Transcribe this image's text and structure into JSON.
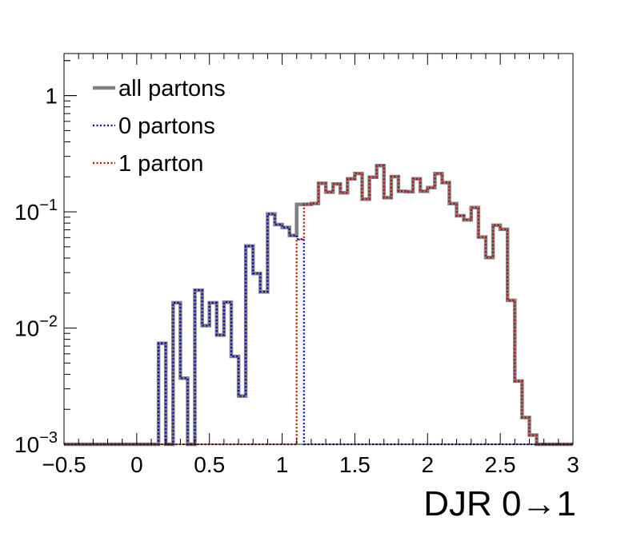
{
  "chart_data": {
    "type": "line",
    "style": "step-histogram",
    "xlabel": "DJR 0→1",
    "ylabel": "",
    "xlim": [
      -0.5,
      3
    ],
    "ylim": [
      0.001,
      2.3
    ],
    "yscale": "log",
    "grid": false,
    "legend_position": "top-left",
    "x_ticks": [
      {
        "value": -0.5,
        "label": "−0.5"
      },
      {
        "value": 0,
        "label": "0"
      },
      {
        "value": 0.5,
        "label": "0.5"
      },
      {
        "value": 1,
        "label": "1"
      },
      {
        "value": 1.5,
        "label": "1.5"
      },
      {
        "value": 2,
        "label": "2"
      },
      {
        "value": 2.5,
        "label": "2.5"
      },
      {
        "value": 3,
        "label": "3"
      }
    ],
    "y_ticks": [
      {
        "value": 1,
        "base": "1",
        "exp": ""
      },
      {
        "value": 0.1,
        "base": "10",
        "exp": "−1"
      },
      {
        "value": 0.01,
        "base": "10",
        "exp": "−2"
      },
      {
        "value": 0.001,
        "base": "10",
        "exp": "−3"
      }
    ],
    "bin_edges": [
      -0.5,
      -0.45,
      -0.4,
      -0.35,
      -0.3,
      -0.25,
      -0.2,
      -0.15,
      -0.1,
      -0.05,
      0,
      0.05,
      0.1,
      0.15,
      0.2,
      0.25,
      0.3,
      0.35,
      0.4,
      0.45,
      0.5,
      0.55,
      0.6,
      0.65,
      0.7,
      0.75,
      0.8,
      0.85,
      0.9,
      0.95,
      1,
      1.05,
      1.1,
      1.15,
      1.2,
      1.25,
      1.3,
      1.35,
      1.4,
      1.45,
      1.5,
      1.55,
      1.6,
      1.65,
      1.7,
      1.75,
      1.8,
      1.85,
      1.9,
      1.95,
      2,
      2.05,
      2.1,
      2.15,
      2.2,
      2.25,
      2.3,
      2.35,
      2.4,
      2.45,
      2.5,
      2.55,
      2.6,
      2.65,
      2.7,
      2.75,
      2.8,
      2.85,
      2.9,
      2.95,
      3
    ],
    "series": [
      {
        "name": "all partons",
        "color": "#808080",
        "line": "solid",
        "values": [
          0.001,
          0.001,
          0.001,
          0.001,
          0.001,
          0.001,
          0.001,
          0.001,
          0.001,
          0.001,
          0.001,
          0.001,
          0.001,
          0.0074,
          0.001,
          0.0165,
          0.0037,
          0.001,
          0.0212,
          0.0105,
          0.0165,
          0.0087,
          0.0167,
          0.0057,
          0.0026,
          0.0508,
          0.0295,
          0.0205,
          0.096,
          0.0777,
          0.0734,
          0.0627,
          0.116,
          0.1162,
          0.118,
          0.176,
          0.1477,
          0.1737,
          0.1456,
          0.1922,
          0.2136,
          0.1286,
          0.1988,
          0.25,
          0.1323,
          0.2008,
          0.1502,
          0.1489,
          0.1922,
          0.1502,
          0.1616,
          0.2129,
          0.1785,
          0.1177,
          0.0925,
          0.0853,
          0.1088,
          0.0607,
          0.0405,
          0.0766,
          0.0708,
          0.0173,
          0.0035,
          0.0017,
          0.0012,
          0.001,
          0.001,
          0.001,
          0.001,
          0.001
        ]
      },
      {
        "name": "0 partons",
        "color": "#0000cc",
        "line": "dotted",
        "values": [
          0.001,
          0.001,
          0.001,
          0.001,
          0.001,
          0.001,
          0.001,
          0.001,
          0.001,
          0.001,
          0.001,
          0.001,
          0.001,
          0.0074,
          0.001,
          0.0165,
          0.0037,
          0.001,
          0.0212,
          0.0105,
          0.0165,
          0.0087,
          0.0167,
          0.0057,
          0.0026,
          0.0508,
          0.0295,
          0.0205,
          0.096,
          0.0777,
          0.0734,
          0.0627,
          0.0583,
          0.001,
          0.001,
          0.001,
          0.001,
          0.001,
          0.001,
          0.001,
          0.001,
          0.001,
          0.001,
          0.001,
          0.001,
          0.001,
          0.001,
          0.001,
          0.001,
          0.001,
          0.001,
          0.001,
          0.001,
          0.001,
          0.001,
          0.001,
          0.001,
          0.001,
          0.001,
          0.001,
          0.001,
          0.001,
          0.001,
          0.001,
          0.001,
          0.001,
          0.001,
          0.001,
          0.001,
          0.001
        ]
      },
      {
        "name": "1 parton",
        "color": "#cc0000",
        "line": "dotted",
        "values": [
          0.001,
          0.001,
          0.001,
          0.001,
          0.001,
          0.001,
          0.001,
          0.001,
          0.001,
          0.001,
          0.001,
          0.001,
          0.001,
          0.001,
          0.001,
          0.001,
          0.001,
          0.001,
          0.001,
          0.001,
          0.001,
          0.001,
          0.001,
          0.001,
          0.001,
          0.001,
          0.001,
          0.001,
          0.001,
          0.001,
          0.001,
          0.001,
          0.0577,
          0.1162,
          0.118,
          0.176,
          0.1477,
          0.1737,
          0.1456,
          0.1922,
          0.2136,
          0.1286,
          0.1988,
          0.25,
          0.1323,
          0.2008,
          0.1502,
          0.1489,
          0.1922,
          0.1502,
          0.1616,
          0.2129,
          0.1785,
          0.1177,
          0.0925,
          0.0853,
          0.1088,
          0.0607,
          0.0405,
          0.0766,
          0.0708,
          0.0173,
          0.0035,
          0.0017,
          0.0012,
          0.001,
          0.001,
          0.001,
          0.001,
          0.001
        ]
      }
    ]
  }
}
